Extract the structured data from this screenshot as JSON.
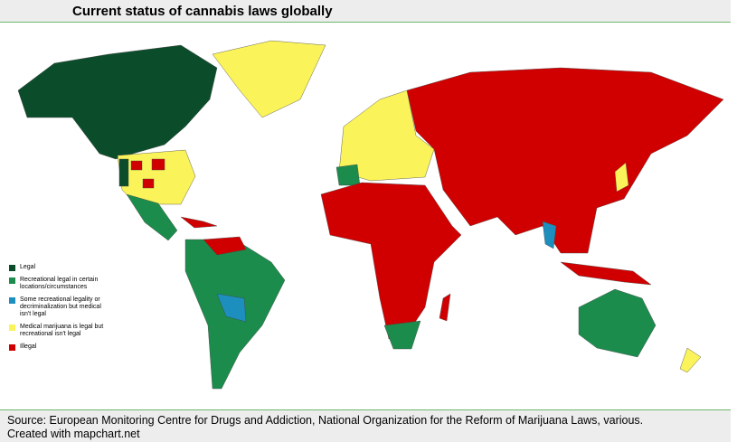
{
  "title": "Current status of cannabis laws globally",
  "legend": [
    {
      "label": "Legal",
      "color": "#0b4d2b"
    },
    {
      "label": "Recreational legal in certain locations/circumstances",
      "color": "#1b8c4c"
    },
    {
      "label": "Some recreational legality or decriminalization but medical isn't legal",
      "color": "#1d8fbf"
    },
    {
      "label": "Medical marijuana is legal but recreational isn't legal",
      "color": "#fbf35a"
    },
    {
      "label": "Illegal",
      "color": "#d10000"
    }
  ],
  "source": "Source: European Monitoring Centre for Drugs and Addiction, National Organization for the Reform of Marijuana Laws, various.",
  "credit": "Created with mapchart.net"
}
